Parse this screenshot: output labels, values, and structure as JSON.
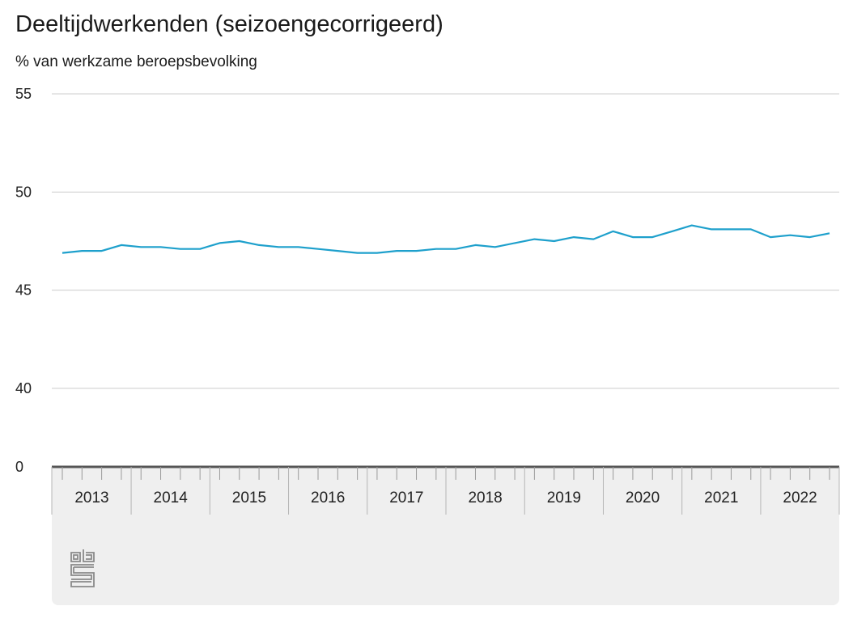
{
  "chart_data": {
    "type": "line",
    "title": "Deeltijdwerkenden (seizoengecorrigeerd)",
    "subtitle": "% van werkzame beroepsbevolking",
    "y_ticks": [
      "55",
      "50",
      "45",
      "40",
      "0"
    ],
    "y_axis_break": true,
    "x_ticks": [
      "2013",
      "2014",
      "2015",
      "2016",
      "2017",
      "2018",
      "2019",
      "2020",
      "2021",
      "2022"
    ],
    "grid": true,
    "line_color": "#1ea0cc",
    "series": [
      {
        "x": [
          "2013 Q1",
          "2013 Q2",
          "2013 Q3",
          "2013 Q4",
          "2014 Q1",
          "2014 Q2",
          "2014 Q3",
          "2014 Q4",
          "2015 Q1",
          "2015 Q2",
          "2015 Q3",
          "2015 Q4",
          "2016 Q1",
          "2016 Q2",
          "2016 Q3",
          "2016 Q4",
          "2017 Q1",
          "2017 Q2",
          "2017 Q3",
          "2017 Q4",
          "2018 Q1",
          "2018 Q2",
          "2018 Q3",
          "2018 Q4",
          "2019 Q1",
          "2019 Q2",
          "2019 Q3",
          "2019 Q4",
          "2020 Q1",
          "2020 Q2",
          "2020 Q3",
          "2020 Q4",
          "2021 Q1",
          "2021 Q2",
          "2021 Q3",
          "2021 Q4",
          "2022 Q1",
          "2022 Q2",
          "2022 Q3",
          "2022 Q4"
        ],
        "values": [
          46.9,
          47.0,
          47.0,
          47.3,
          47.2,
          47.2,
          47.1,
          47.1,
          47.4,
          47.5,
          47.3,
          47.2,
          47.2,
          47.1,
          47.0,
          46.9,
          46.9,
          47.0,
          47.0,
          47.1,
          47.1,
          47.3,
          47.2,
          47.4,
          47.6,
          47.5,
          47.7,
          47.6,
          48.0,
          47.7,
          47.7,
          48.0,
          48.3,
          48.1,
          48.1,
          48.1,
          47.7,
          47.8,
          47.7,
          47.9
        ]
      }
    ]
  },
  "source_logo": "cbs"
}
